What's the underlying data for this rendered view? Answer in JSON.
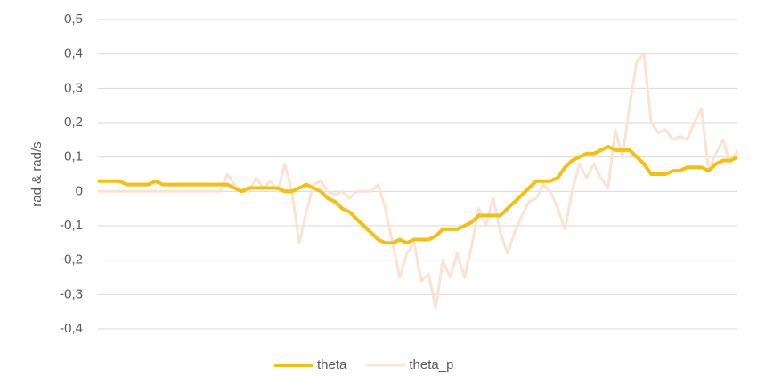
{
  "chart_data": {
    "type": "line",
    "y_label": "rad & rad/s",
    "ylim": [
      -0.4,
      0.5
    ],
    "yticks": [
      {
        "value": -0.4,
        "label": "-0,4"
      },
      {
        "value": -0.3,
        "label": "-0,3"
      },
      {
        "value": -0.2,
        "label": "-0,2"
      },
      {
        "value": -0.1,
        "label": "-0,1"
      },
      0,
      {
        "value": 0.1,
        "label": "0,1"
      },
      {
        "value": 0.2,
        "label": "0,2"
      },
      {
        "value": 0.3,
        "label": "0,3"
      },
      {
        "value": 0.4,
        "label": "0,4"
      },
      {
        "value": 0.5,
        "label": "0,5"
      }
    ],
    "grid": true,
    "legend": "bottom",
    "series": [
      {
        "name": "theta",
        "color": "#f5bf0f",
        "values": [
          0.03,
          0.03,
          0.03,
          0.03,
          0.02,
          0.02,
          0.02,
          0.02,
          0.03,
          0.02,
          0.02,
          0.02,
          0.02,
          0.02,
          0.02,
          0.02,
          0.02,
          0.02,
          0.02,
          0.01,
          0.0,
          0.01,
          0.01,
          0.01,
          0.01,
          0.01,
          0.0,
          0.0,
          0.01,
          0.02,
          0.01,
          0.0,
          -0.02,
          -0.03,
          -0.05,
          -0.06,
          -0.08,
          -0.1,
          -0.12,
          -0.14,
          -0.15,
          -0.15,
          -0.14,
          -0.15,
          -0.14,
          -0.14,
          -0.14,
          -0.13,
          -0.11,
          -0.11,
          -0.11,
          -0.1,
          -0.09,
          -0.07,
          -0.07,
          -0.07,
          -0.07,
          -0.05,
          -0.03,
          -0.01,
          0.01,
          0.03,
          0.03,
          0.03,
          0.04,
          0.07,
          0.09,
          0.1,
          0.11,
          0.11,
          0.12,
          0.13,
          0.12,
          0.12,
          0.12,
          0.1,
          0.08,
          0.05,
          0.05,
          0.05,
          0.06,
          0.06,
          0.07,
          0.07,
          0.07,
          0.06,
          0.08,
          0.09,
          0.09,
          0.1
        ]
      },
      {
        "name": "theta_p",
        "color": "#fbe3d3",
        "values": [
          0,
          0,
          0,
          0,
          0,
          0,
          0,
          0,
          0,
          0,
          0,
          0,
          0,
          0,
          0,
          0,
          0,
          0,
          0.05,
          0.02,
          0.0,
          0.0,
          0.04,
          0.01,
          0.03,
          0.0,
          0.08,
          0.0,
          -0.15,
          -0.06,
          0.02,
          0.03,
          0.0,
          -0.01,
          0.0,
          -0.02,
          0.0,
          0.0,
          0.0,
          0.02,
          -0.05,
          -0.15,
          -0.25,
          -0.18,
          -0.15,
          -0.26,
          -0.24,
          -0.34,
          -0.2,
          -0.25,
          -0.18,
          -0.25,
          -0.16,
          -0.05,
          -0.1,
          -0.02,
          -0.12,
          -0.18,
          -0.12,
          -0.07,
          -0.03,
          -0.02,
          0.02,
          0.0,
          -0.05,
          -0.11,
          0.0,
          0.08,
          0.04,
          0.08,
          0.04,
          0.01,
          0.18,
          0.1,
          0.25,
          0.38,
          0.4,
          0.2,
          0.17,
          0.18,
          0.15,
          0.16,
          0.15,
          0.2,
          0.24,
          0.06,
          0.11,
          0.15,
          0.08,
          0.12
        ]
      }
    ]
  }
}
